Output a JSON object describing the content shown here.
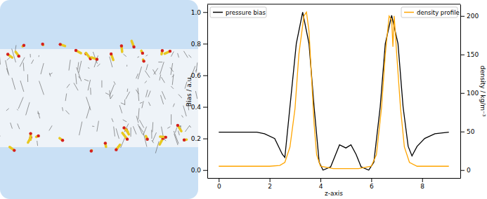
{
  "chart_data": {
    "type": "line",
    "x_label": "z-axis",
    "y_label": "Bias / a.u.",
    "y2_label": "density / kg/m⁻³",
    "legend": "top",
    "xlim": [
      -0.45,
      9.5
    ],
    "xticks": [
      0,
      2,
      4,
      6,
      8
    ],
    "ylim": [
      -0.05,
      1.05
    ],
    "yticks": [
      {
        "value": 0,
        "label": "0.0"
      },
      {
        "value": 0.2,
        "label": "0.2"
      },
      {
        "value": 0.4,
        "label": "0.4"
      },
      {
        "value": 0.6,
        "label": "0.6"
      },
      {
        "value": 0.8,
        "label": "0.8"
      },
      {
        "value": 1,
        "label": "1.0"
      }
    ],
    "y2lim": [
      -10.25,
      215.25
    ],
    "y2ticks": [
      0,
      50,
      100,
      150,
      200
    ],
    "series": [
      {
        "name": "pressure bias",
        "color": "#000000",
        "axis": "y",
        "x": [
          0,
          0.5,
          1.0,
          1.5,
          1.8,
          2.2,
          2.5,
          2.6,
          2.8,
          3.05,
          3.3,
          3.55,
          3.75,
          3.95,
          4.1,
          4.4,
          4.6,
          4.75,
          5.0,
          5.2,
          5.4,
          5.6,
          5.9,
          6.1,
          6.35,
          6.55,
          6.8,
          7.05,
          7.25,
          7.45,
          7.6,
          7.8,
          8.1,
          8.5,
          9.05
        ],
        "values": [
          0.24,
          0.24,
          0.24,
          0.24,
          0.23,
          0.2,
          0.1,
          0.08,
          0.4,
          0.8,
          1.0,
          0.8,
          0.4,
          0.05,
          0.0,
          0.02,
          0.1,
          0.16,
          0.14,
          0.16,
          0.1,
          0.02,
          0.0,
          0.05,
          0.4,
          0.8,
          0.98,
          0.8,
          0.4,
          0.15,
          0.09,
          0.15,
          0.2,
          0.23,
          0.24
        ]
      },
      {
        "name": "density profile",
        "color": "#ffa500",
        "axis": "y2",
        "x": [
          0,
          1.0,
          2.0,
          2.4,
          2.6,
          2.8,
          3.0,
          3.15,
          3.35,
          3.45,
          3.55,
          3.65,
          3.75,
          3.85,
          4.0,
          4.5,
          5.5,
          6.0,
          6.2,
          6.4,
          6.55,
          6.7,
          6.8,
          6.85,
          6.9,
          7.0,
          7.15,
          7.3,
          7.5,
          7.8,
          9.05
        ],
        "values": [
          5,
          5,
          5,
          6,
          10,
          30,
          80,
          150,
          200,
          205,
          180,
          120,
          60,
          20,
          5,
          2,
          2,
          5,
          20,
          80,
          150,
          200,
          195,
          160,
          200,
          150,
          80,
          30,
          10,
          5,
          5
        ]
      }
    ]
  }
}
